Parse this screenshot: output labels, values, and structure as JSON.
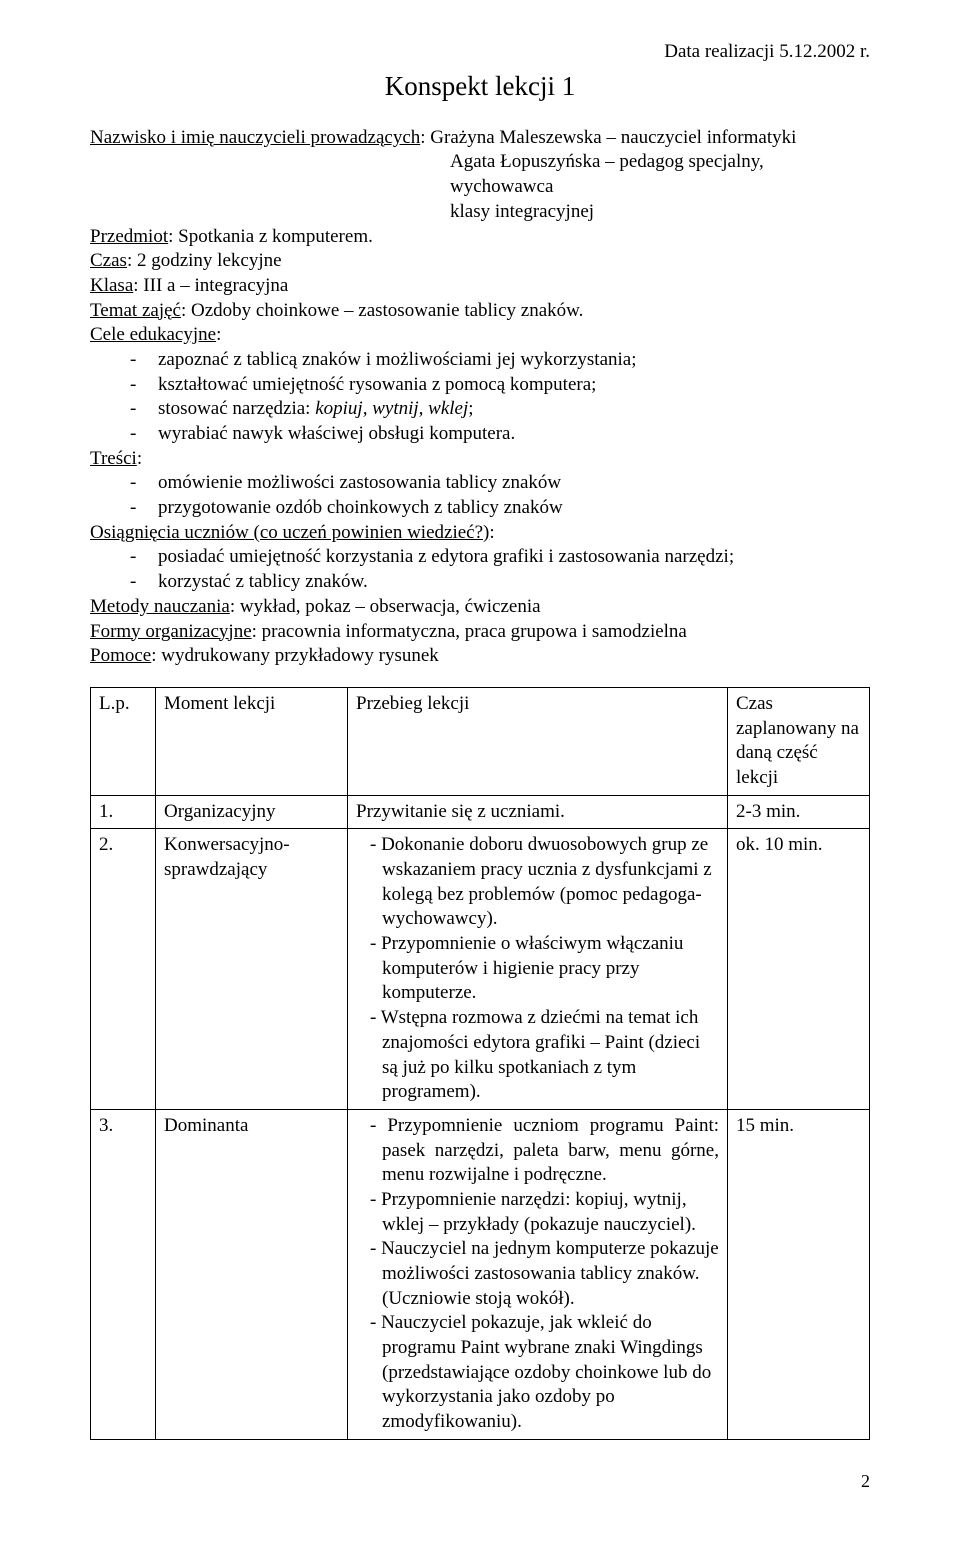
{
  "date": "Data realizacji 5.12.2002 r.",
  "heading": "Konspekt lekcji 1",
  "intro": {
    "line1_label": "Nazwisko i imię nauczycieli prowadzących",
    "line1_rest": ": Grażyna Maleszewska – nauczyciel informatyki",
    "line2": "Agata Łopuszyńska – pedagog specjalny,",
    "line3": "wychowawca",
    "line4": "klasy integracyjnej",
    "przedmiot_label": "Przedmiot",
    "przedmiot_value": ": Spotkania z komputerem.",
    "czas_label": "Czas",
    "czas_value": ": 2 godziny lekcyjne",
    "klasa_label": "Klasa",
    "klasa_value": ": III a – integracyjna",
    "temat_label": "Temat zajęć",
    "temat_value": ": Ozdoby choinkowe – zastosowanie tablicy znaków.",
    "cele_label": "Cele edukacyjne",
    "cele_items": [
      "zapoznać z tablicą znaków i możliwościami jej wykorzystania;",
      "kształtować umiejętność rysowania z pomocą komputera;",
      "stosować narzędzia: ",
      "wyrabiać nawyk właściwej obsługi komputera."
    ],
    "cele_item3_italic": "kopiuj, wytnij, wklej",
    "cele_item3_after": ";",
    "tresci_label": "Treści",
    "tresci_items": [
      "omówienie możliwości zastosowania tablicy znaków",
      "przygotowanie ozdób choinkowych z tablicy znaków"
    ],
    "osiag_label": "Osiągnięcia uczniów (co uczeń powinien wiedzieć?)",
    "osiag_suffix": ":",
    "osiag_items": [
      "posiadać umiejętność korzystania z edytora grafiki i zastosowania narzędzi;",
      "korzystać z tablicy znaków."
    ],
    "metody_label": "Metody nauczania",
    "metody_value": ": wykład, pokaz – obserwacja, ćwiczenia",
    "formy_label": "Formy organizacyjne",
    "formy_value": ": pracownia informatyczna, praca grupowa i samodzielna",
    "pomoce_label": "Pomoce",
    "pomoce_value": ": wydrukowany przykładowy rysunek"
  },
  "table": {
    "headers": {
      "lp": "L.p.",
      "moment": "Moment lekcji",
      "przebieg": "Przebieg lekcji",
      "czas": "Czas zaplanowany na daną część lekcji"
    },
    "rows": [
      {
        "lp": "1.",
        "moment": "Organizacyjny",
        "przebieg": "Przywitanie się z uczniami.",
        "czas": "2-3 min."
      },
      {
        "lp": "2.",
        "moment": "Konwersacyjno-sprawdzający",
        "przebieg_lines": [
          "- Dokonanie doboru dwuosobowych grup ze wskazaniem pracy ucznia z dysfunkcjami z kolegą bez problemów (pomoc pedagoga-wychowawcy).",
          "- Przypomnienie o właściwym włączaniu komputerów i higienie pracy przy komputerze.",
          "- Wstępna rozmowa z dziećmi na temat ich znajomości edytora grafiki – Paint (dzieci są już po kilku spotkaniach z tym programem)."
        ],
        "czas": "ok. 10 min."
      },
      {
        "lp": "3.",
        "moment": "Dominanta",
        "przebieg_lines": [
          "- Przypomnienie uczniom programu Paint: pasek narzędzi, paleta barw, menu górne, menu rozwijalne i podręczne.",
          "- Przypomnienie narzędzi: kopiuj, wytnij, wklej – przykłady (pokazuje nauczyciel).",
          "- Nauczyciel na jednym komputerze pokazuje możliwości zastosowania tablicy znaków. (Uczniowie stoją wokół).",
          "- Nauczyciel pokazuje, jak wkleić do programu Paint wybrane znaki Wingdings (przedstawiające ozdoby choinkowe lub do wykorzystania jako ozdoby po zmodyfikowaniu)."
        ],
        "przebieg_line0_justify": true,
        "czas": "15 min."
      }
    ]
  },
  "page_number": "2"
}
